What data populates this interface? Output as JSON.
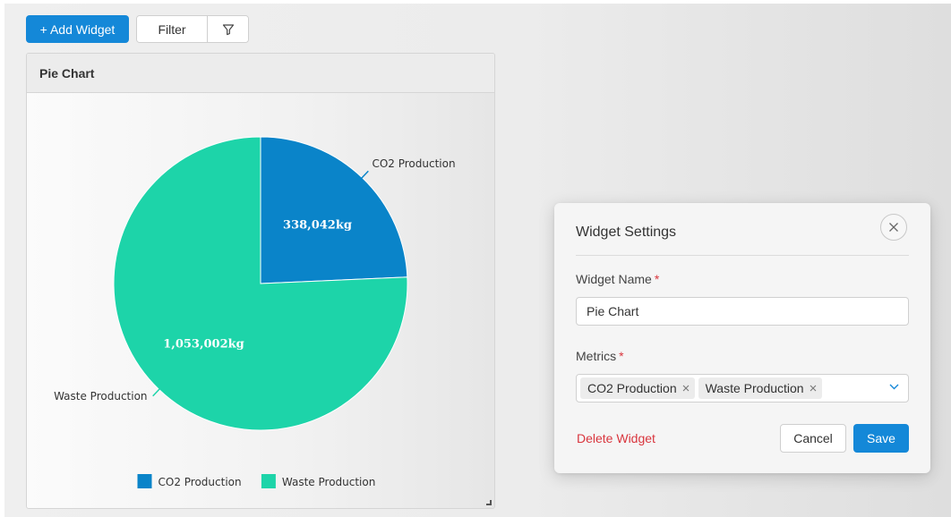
{
  "toolbar": {
    "add_widget_label": "+ Add Widget",
    "filter_label": "Filter",
    "filter_icon": "funnel-icon"
  },
  "widget": {
    "title": "Pie Chart"
  },
  "chart_data": {
    "type": "pie",
    "title": "",
    "categories": [
      "CO2 Production",
      "Waste Production"
    ],
    "values": [
      338042,
      1053002
    ],
    "unit": "kg",
    "data_labels": [
      "338,042kg",
      "1,053,002kg"
    ],
    "colors": [
      "#0a84c9",
      "#1dd4a9"
    ],
    "legend": {
      "position": "bottom",
      "entries": [
        "CO2 Production",
        "Waste Production"
      ]
    }
  },
  "modal": {
    "title": "Widget Settings",
    "name_label": "Widget Name",
    "name_value": "Pie Chart",
    "metrics_label": "Metrics",
    "required_marker": "*",
    "metrics_selected": [
      "CO2 Production",
      "Waste Production"
    ],
    "delete_label": "Delete Widget",
    "cancel_label": "Cancel",
    "save_label": "Save"
  },
  "colors": {
    "accent": "#1488d8",
    "danger": "#d9363e"
  }
}
